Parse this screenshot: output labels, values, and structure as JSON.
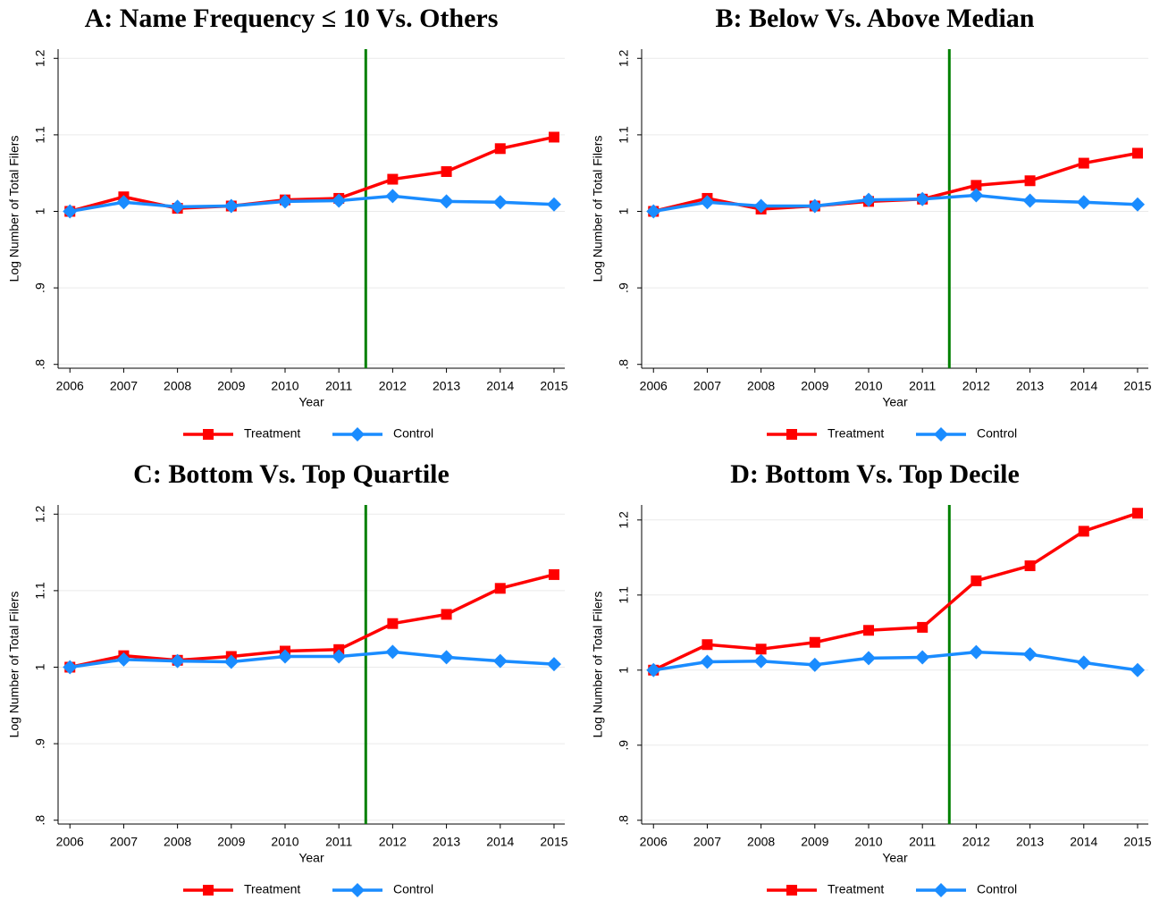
{
  "chart_data": [
    {
      "type": "line",
      "title": "A: Name Frequency ≤ 10 Vs. Others",
      "xlabel": "Year",
      "ylabel": "Log Number of Total Filers",
      "x": [
        2006,
        2007,
        2008,
        2009,
        2010,
        2011,
        2012,
        2013,
        2014,
        2015
      ],
      "series": [
        {
          "name": "Treatment",
          "color": "#ff0000",
          "marker": "square",
          "values": [
            1.0,
            1.019,
            1.004,
            1.007,
            1.015,
            1.017,
            1.042,
            1.052,
            1.082,
            1.097
          ]
        },
        {
          "name": "Control",
          "color": "#1a8cff",
          "marker": "diamond",
          "values": [
            1.0,
            1.012,
            1.006,
            1.007,
            1.013,
            1.014,
            1.02,
            1.013,
            1.012,
            1.009
          ]
        }
      ],
      "xlim": [
        2005.78,
        2015.2
      ],
      "xticks": [
        2006,
        2007,
        2008,
        2009,
        2010,
        2011,
        2012,
        2013,
        2014,
        2015
      ],
      "ylim": [
        0.795,
        1.212
      ],
      "yticks": [
        {
          "value": 0.8,
          "label": ".8"
        },
        {
          "value": 0.9,
          "label": ".9"
        },
        1,
        1.1,
        1.2
      ],
      "grid": true,
      "vline": 2011.5,
      "vline_color": "#008000",
      "legend": "bottom"
    },
    {
      "type": "line",
      "title": "B: Below Vs. Above Median",
      "xlabel": "Year",
      "ylabel": "Log Number of Total Filers",
      "x": [
        2006,
        2007,
        2008,
        2009,
        2010,
        2011,
        2012,
        2013,
        2014,
        2015
      ],
      "series": [
        {
          "name": "Treatment",
          "color": "#ff0000",
          "marker": "square",
          "values": [
            1.0,
            1.017,
            1.003,
            1.007,
            1.013,
            1.016,
            1.034,
            1.04,
            1.063,
            1.076
          ]
        },
        {
          "name": "Control",
          "color": "#1a8cff",
          "marker": "diamond",
          "values": [
            1.0,
            1.012,
            1.007,
            1.007,
            1.015,
            1.016,
            1.021,
            1.014,
            1.012,
            1.009
          ]
        }
      ],
      "xlim": [
        2005.78,
        2015.2
      ],
      "xticks": [
        2006,
        2007,
        2008,
        2009,
        2010,
        2011,
        2012,
        2013,
        2014,
        2015
      ],
      "ylim": [
        0.795,
        1.212
      ],
      "yticks": [
        {
          "value": 0.8,
          "label": ".8"
        },
        {
          "value": 0.9,
          "label": ".9"
        },
        1,
        1.1,
        1.2
      ],
      "grid": true,
      "vline": 2011.5,
      "vline_color": "#008000",
      "legend": "bottom"
    },
    {
      "type": "line",
      "title": "C: Bottom Vs. Top Quartile",
      "xlabel": "Year",
      "ylabel": "Log Number of Total Filers",
      "x": [
        2006,
        2007,
        2008,
        2009,
        2010,
        2011,
        2012,
        2013,
        2014,
        2015
      ],
      "series": [
        {
          "name": "Treatment",
          "color": "#ff0000",
          "marker": "square",
          "values": [
            1.0,
            1.015,
            1.009,
            1.014,
            1.021,
            1.023,
            1.057,
            1.069,
            1.103,
            1.121
          ]
        },
        {
          "name": "Control",
          "color": "#1a8cff",
          "marker": "diamond",
          "values": [
            1.0,
            1.01,
            1.008,
            1.007,
            1.014,
            1.014,
            1.02,
            1.013,
            1.008,
            1.004
          ]
        }
      ],
      "xlim": [
        2005.78,
        2015.2
      ],
      "xticks": [
        2006,
        2007,
        2008,
        2009,
        2010,
        2011,
        2012,
        2013,
        2014,
        2015
      ],
      "ylim": [
        0.795,
        1.212
      ],
      "yticks": [
        {
          "value": 0.8,
          "label": ".8"
        },
        {
          "value": 0.9,
          "label": ".9"
        },
        1,
        1.1,
        1.2
      ],
      "grid": true,
      "vline": 2011.5,
      "vline_color": "#008000",
      "legend": "bottom"
    },
    {
      "type": "line",
      "title": "D: Bottom Vs. Top Decile",
      "xlabel": "Year",
      "ylabel": "Log Number of Total Filers",
      "x": [
        2006,
        2007,
        2008,
        2009,
        2010,
        2011,
        2012,
        2013,
        2014,
        2015
      ],
      "series": [
        {
          "name": "Treatment",
          "color": "#ff0000",
          "marker": "square",
          "values": [
            1.0,
            1.034,
            1.028,
            1.037,
            1.053,
            1.057,
            1.119,
            1.139,
            1.185,
            1.209
          ]
        },
        {
          "name": "Control",
          "color": "#1a8cff",
          "marker": "diamond",
          "values": [
            1.0,
            1.011,
            1.012,
            1.007,
            1.016,
            1.017,
            1.024,
            1.021,
            1.01,
            1.0
          ]
        }
      ],
      "xlim": [
        2005.78,
        2015.2
      ],
      "xticks": [
        2006,
        2007,
        2008,
        2009,
        2010,
        2011,
        2012,
        2013,
        2014,
        2015
      ],
      "ylim": [
        0.795,
        1.22
      ],
      "yticks": [
        {
          "value": 0.8,
          "label": ".8"
        },
        {
          "value": 0.9,
          "label": ".9"
        },
        1,
        1.1,
        1.2
      ],
      "grid": true,
      "vline": 2011.5,
      "vline_color": "#008000",
      "legend": "bottom"
    }
  ]
}
